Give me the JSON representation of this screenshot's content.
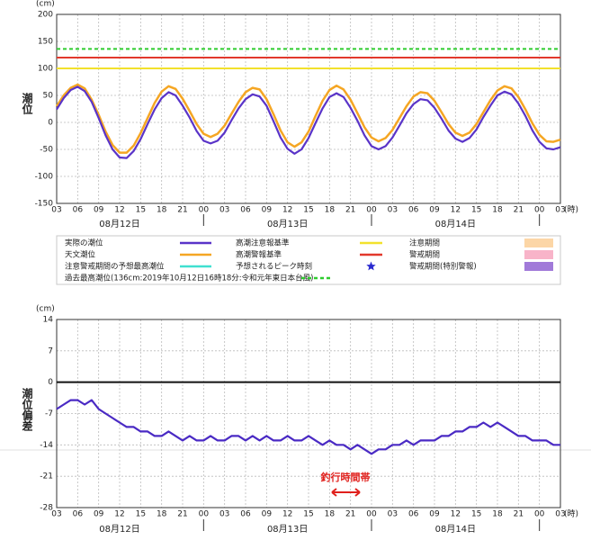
{
  "chart_data": [
    {
      "type": "line",
      "y_unit": "(cm)",
      "ylabel": "潮位",
      "x_unit": "(時)",
      "x": [
        3,
        4,
        5,
        6,
        7,
        8,
        9,
        10,
        11,
        12,
        13,
        14,
        15,
        16,
        17,
        18,
        19,
        20,
        21,
        22,
        23,
        24,
        25,
        26,
        27,
        28,
        29,
        30,
        31,
        32,
        33,
        34,
        35,
        36,
        37,
        38,
        39,
        40,
        41,
        42,
        43,
        44,
        45,
        46,
        47,
        48,
        49,
        50,
        51,
        52,
        53,
        54,
        55,
        56,
        57,
        58,
        59,
        60,
        61,
        62,
        63,
        64,
        65,
        66,
        67,
        68,
        69,
        70,
        71,
        72,
        73,
        74,
        75
      ],
      "xlim": [
        3,
        75
      ],
      "xticks": [
        {
          "value": 3,
          "label": "03"
        },
        {
          "value": 6,
          "label": "06"
        },
        {
          "value": 9,
          "label": "09"
        },
        12,
        15,
        18,
        21,
        {
          "value": 24,
          "label": "00"
        },
        {
          "value": 27,
          "label": "03"
        },
        {
          "value": 30,
          "label": "06"
        },
        {
          "value": 33,
          "label": "09"
        },
        {
          "value": 36,
          "label": "12"
        },
        {
          "value": 39,
          "label": "15"
        },
        {
          "value": 42,
          "label": "18"
        },
        {
          "value": 45,
          "label": "21"
        },
        {
          "value": 48,
          "label": "00"
        },
        {
          "value": 51,
          "label": "03"
        },
        {
          "value": 54,
          "label": "06"
        },
        {
          "value": 57,
          "label": "09"
        },
        {
          "value": 60,
          "label": "12"
        },
        {
          "value": 63,
          "label": "15"
        },
        {
          "value": 66,
          "label": "18"
        },
        {
          "value": 69,
          "label": "21"
        },
        {
          "value": 72,
          "label": "00"
        },
        {
          "value": 75,
          "label": "03"
        }
      ],
      "date_labels": [
        {
          "value": 12,
          "label": "08月12日"
        },
        {
          "value": 36,
          "label": "08月13日"
        },
        {
          "value": 60,
          "label": "08月14日"
        }
      ],
      "day_ticks": [
        24,
        48,
        72
      ],
      "ylim": [
        -150,
        200
      ],
      "yticks": [
        200,
        150,
        100,
        50,
        0,
        -50,
        -100,
        -150
      ],
      "grid": true,
      "series": [
        {
          "name": "実際の潮位",
          "color": "#5a34c8",
          "values": [
            24,
            45,
            60,
            66,
            58,
            38,
            8,
            -24,
            -50,
            -65,
            -66,
            -53,
            -31,
            -3,
            24,
            45,
            56,
            50,
            31,
            9,
            -16,
            -34,
            -39,
            -34,
            -19,
            4,
            26,
            43,
            52,
            48,
            31,
            2,
            -28,
            -49,
            -58,
            -50,
            -29,
            -1,
            26,
            47,
            54,
            47,
            27,
            3,
            -24,
            -44,
            -50,
            -44,
            -28,
            -6,
            17,
            34,
            43,
            41,
            27,
            7,
            -15,
            -30,
            -36,
            -29,
            -13,
            10,
            31,
            50,
            57,
            52,
            35,
            12,
            -15,
            -36,
            -48,
            -50,
            -46
          ]
        },
        {
          "name": "天文潮位",
          "color": "#f5a623",
          "values": [
            30,
            50,
            64,
            70,
            63,
            42,
            14,
            -17,
            -42,
            -56,
            -56,
            -43,
            -20,
            8,
            36,
            57,
            67,
            62,
            44,
            21,
            -3,
            -21,
            -27,
            -21,
            -6,
            16,
            38,
            56,
            64,
            61,
            43,
            15,
            -15,
            -37,
            -45,
            -37,
            -17,
            12,
            40,
            60,
            68,
            61,
            42,
            17,
            -9,
            -28,
            -35,
            -29,
            -14,
            8,
            30,
            48,
            56,
            54,
            40,
            19,
            -3,
            -19,
            -25,
            -19,
            -3,
            19,
            41,
            59,
            67,
            63,
            47,
            24,
            -2,
            -23,
            -35,
            -36,
            -32
          ]
        }
      ],
      "reference_lines": [
        {
          "name": "高潮注意報基準",
          "color": "#f2e12c",
          "value": 100
        },
        {
          "name": "高潮警報基準",
          "color": "#e2392c",
          "value": 120
        },
        {
          "name": "過去最高潮位(136cm:2019年10月12日16時18分:令和元年東日本台風)",
          "color": "#2ecc2e",
          "value": 136,
          "dashed": true
        }
      ],
      "legend_items": [
        {
          "name": "注意警戒期間の予想最高潮位",
          "color": "#40e0d0",
          "mark": "line"
        },
        {
          "name": "予想されるピーク時刻",
          "color": "#2a2ad0",
          "mark": "star"
        },
        {
          "name": "注意期間",
          "color": "#fcd6a6",
          "mark": "box"
        },
        {
          "name": "警戒期間",
          "color": "#f8b4c9",
          "mark": "box"
        },
        {
          "name": "警戒期間(特別警報)",
          "color": "#a17ad9",
          "mark": "box"
        }
      ]
    },
    {
      "type": "line",
      "y_unit": "(cm)",
      "ylabel": "潮位偏差",
      "x_unit": "(時)",
      "x": [
        3,
        4,
        5,
        6,
        7,
        8,
        9,
        10,
        11,
        12,
        13,
        14,
        15,
        16,
        17,
        18,
        19,
        20,
        21,
        22,
        23,
        24,
        25,
        26,
        27,
        28,
        29,
        30,
        31,
        32,
        33,
        34,
        35,
        36,
        37,
        38,
        39,
        40,
        41,
        42,
        43,
        44,
        45,
        46,
        47,
        48,
        49,
        50,
        51,
        52,
        53,
        54,
        55,
        56,
        57,
        58,
        59,
        60,
        61,
        62,
        63,
        64,
        65,
        66,
        67,
        68,
        69,
        70,
        71,
        72,
        73,
        74,
        75
      ],
      "xlim": [
        3,
        75
      ],
      "xticks": [
        {
          "value": 3,
          "label": "03"
        },
        {
          "value": 6,
          "label": "06"
        },
        {
          "value": 9,
          "label": "09"
        },
        12,
        15,
        18,
        21,
        {
          "value": 24,
          "label": "00"
        },
        {
          "value": 27,
          "label": "03"
        },
        {
          "value": 30,
          "label": "06"
        },
        {
          "value": 33,
          "label": "09"
        },
        {
          "value": 36,
          "label": "12"
        },
        {
          "value": 39,
          "label": "15"
        },
        {
          "value": 42,
          "label": "18"
        },
        {
          "value": 45,
          "label": "21"
        },
        {
          "value": 48,
          "label": "00"
        },
        {
          "value": 51,
          "label": "03"
        },
        {
          "value": 54,
          "label": "06"
        },
        {
          "value": 57,
          "label": "09"
        },
        {
          "value": 60,
          "label": "12"
        },
        {
          "value": 63,
          "label": "15"
        },
        {
          "value": 66,
          "label": "18"
        },
        {
          "value": 69,
          "label": "21"
        },
        {
          "value": 72,
          "label": "00"
        },
        {
          "value": 75,
          "label": "03"
        }
      ],
      "date_labels": [
        {
          "value": 12,
          "label": "08月12日"
        },
        {
          "value": 36,
          "label": "08月13日"
        },
        {
          "value": 60,
          "label": "08月14日"
        }
      ],
      "day_ticks": [
        24,
        48,
        72
      ],
      "ylim": [
        -28,
        14
      ],
      "yticks": [
        14,
        7,
        0,
        -7,
        -14,
        -21,
        -28
      ],
      "grid": true,
      "zero_line": true,
      "series": [
        {
          "name": "潮位偏差",
          "color": "#4a2ac4",
          "values": [
            -6,
            -5,
            -4,
            -4,
            -5,
            -4,
            -6,
            -7,
            -8,
            -9,
            -10,
            -10,
            -11,
            -11,
            -12,
            -12,
            -11,
            -12,
            -13,
            -12,
            -13,
            -13,
            -12,
            -13,
            -13,
            -12,
            -12,
            -13,
            -12,
            -13,
            -12,
            -13,
            -13,
            -12,
            -13,
            -13,
            -12,
            -13,
            -14,
            -13,
            -14,
            -14,
            -15,
            -14,
            -15,
            -16,
            -15,
            -15,
            -14,
            -14,
            -13,
            -14,
            -13,
            -13,
            -13,
            -12,
            -12,
            -11,
            -11,
            -10,
            -10,
            -9,
            -10,
            -9,
            -10,
            -11,
            -12,
            -12,
            -13,
            -13,
            -13,
            -14,
            -14
          ]
        }
      ],
      "annotation": "釣行時間帯"
    }
  ]
}
